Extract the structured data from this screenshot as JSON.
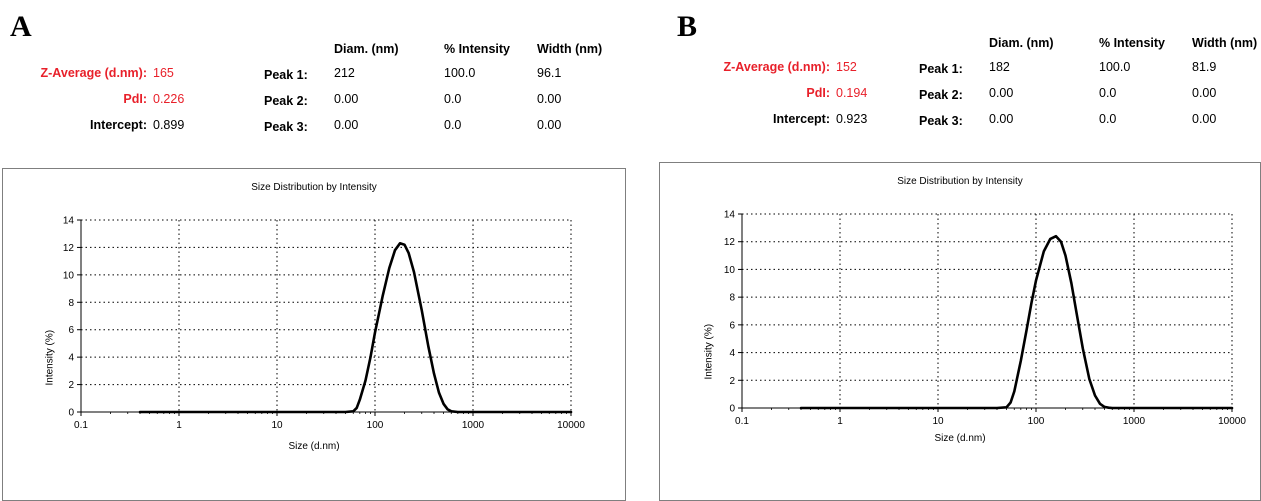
{
  "panels": [
    {
      "letter": "A",
      "summary": {
        "z_average_label": "Z-Average (d.nm):",
        "z_average_value": "165",
        "pdi_label": "PdI:",
        "pdi_value": "0.226",
        "intercept_label": "Intercept:",
        "intercept_value": "0.899"
      },
      "peak_table": {
        "headers": [
          "Diam. (nm)",
          "% Intensity",
          "Width (nm)"
        ],
        "rows": [
          {
            "label": "Peak 1:",
            "cells": [
              "212",
              "100.0",
              "96.1"
            ]
          },
          {
            "label": "Peak 2:",
            "cells": [
              "0.00",
              "0.0",
              "0.00"
            ]
          },
          {
            "label": "Peak 3:",
            "cells": [
              "0.00",
              "0.0",
              "0.00"
            ]
          }
        ]
      }
    },
    {
      "letter": "B",
      "summary": {
        "z_average_label": "Z-Average (d.nm):",
        "z_average_value": "152",
        "pdi_label": "PdI:",
        "pdi_value": "0.194",
        "intercept_label": "Intercept:",
        "intercept_value": "0.923"
      },
      "peak_table": {
        "headers": [
          "Diam. (nm)",
          "% Intensity",
          "Width (nm)"
        ],
        "rows": [
          {
            "label": "Peak 1:",
            "cells": [
              "182",
              "100.0",
              "81.9"
            ]
          },
          {
            "label": "Peak 2:",
            "cells": [
              "0.00",
              "0.0",
              "0.00"
            ]
          },
          {
            "label": "Peak 3:",
            "cells": [
              "0.00",
              "0.0",
              "0.00"
            ]
          }
        ]
      }
    }
  ],
  "colors": {
    "highlight": "#e8202a",
    "curve": "#000000",
    "frame": "#7f7f7f"
  },
  "chart_data": [
    {
      "type": "line",
      "title": "Size Distribution by Intensity",
      "xlabel": "Size (d.nm)",
      "ylabel": "Intensity (%)",
      "xscale": "log",
      "xlim": [
        0.1,
        10000
      ],
      "ylim": [
        0,
        14
      ],
      "x_ticks": [
        "0.1",
        "1",
        "10",
        "100",
        "1000",
        "10000"
      ],
      "y_ticks": [
        "0",
        "2",
        "4",
        "6",
        "8",
        "10",
        "12",
        "14"
      ],
      "grid": true,
      "series": [
        {
          "x": [
            0.4,
            1,
            10,
            50,
            60,
            65,
            70,
            80,
            90,
            100,
            120,
            140,
            160,
            180,
            200,
            220,
            250,
            300,
            350,
            400,
            450,
            500,
            550,
            600,
            700,
            1000,
            10000
          ],
          "y": [
            0,
            0,
            0,
            0,
            0.05,
            0.3,
            0.9,
            2.3,
            4.0,
            5.8,
            8.5,
            10.5,
            11.8,
            12.3,
            12.2,
            11.6,
            10.2,
            7.4,
            4.8,
            2.8,
            1.4,
            0.6,
            0.2,
            0.05,
            0,
            0,
            0
          ]
        }
      ]
    },
    {
      "type": "line",
      "title": "Size Distribution by Intensity",
      "xlabel": "Size (d.nm)",
      "ylabel": "Intensity (%)",
      "xscale": "log",
      "xlim": [
        0.1,
        10000
      ],
      "ylim": [
        0,
        14
      ],
      "x_ticks": [
        "0.1",
        "1",
        "10",
        "100",
        "1000",
        "10000"
      ],
      "y_ticks": [
        "0",
        "2",
        "4",
        "6",
        "8",
        "10",
        "12",
        "14"
      ],
      "grid": true,
      "series": [
        {
          "x": [
            0.4,
            1,
            10,
            40,
            50,
            55,
            60,
            70,
            80,
            90,
            100,
            120,
            140,
            160,
            180,
            200,
            230,
            260,
            300,
            350,
            400,
            450,
            500,
            550,
            600,
            1000,
            10000
          ],
          "y": [
            0,
            0,
            0,
            0,
            0.05,
            0.4,
            1.2,
            3.4,
            5.6,
            7.6,
            9.2,
            11.3,
            12.2,
            12.4,
            12.0,
            11.0,
            9.0,
            6.8,
            4.3,
            2.1,
            0.9,
            0.3,
            0.08,
            0.02,
            0,
            0,
            0
          ]
        }
      ]
    }
  ]
}
